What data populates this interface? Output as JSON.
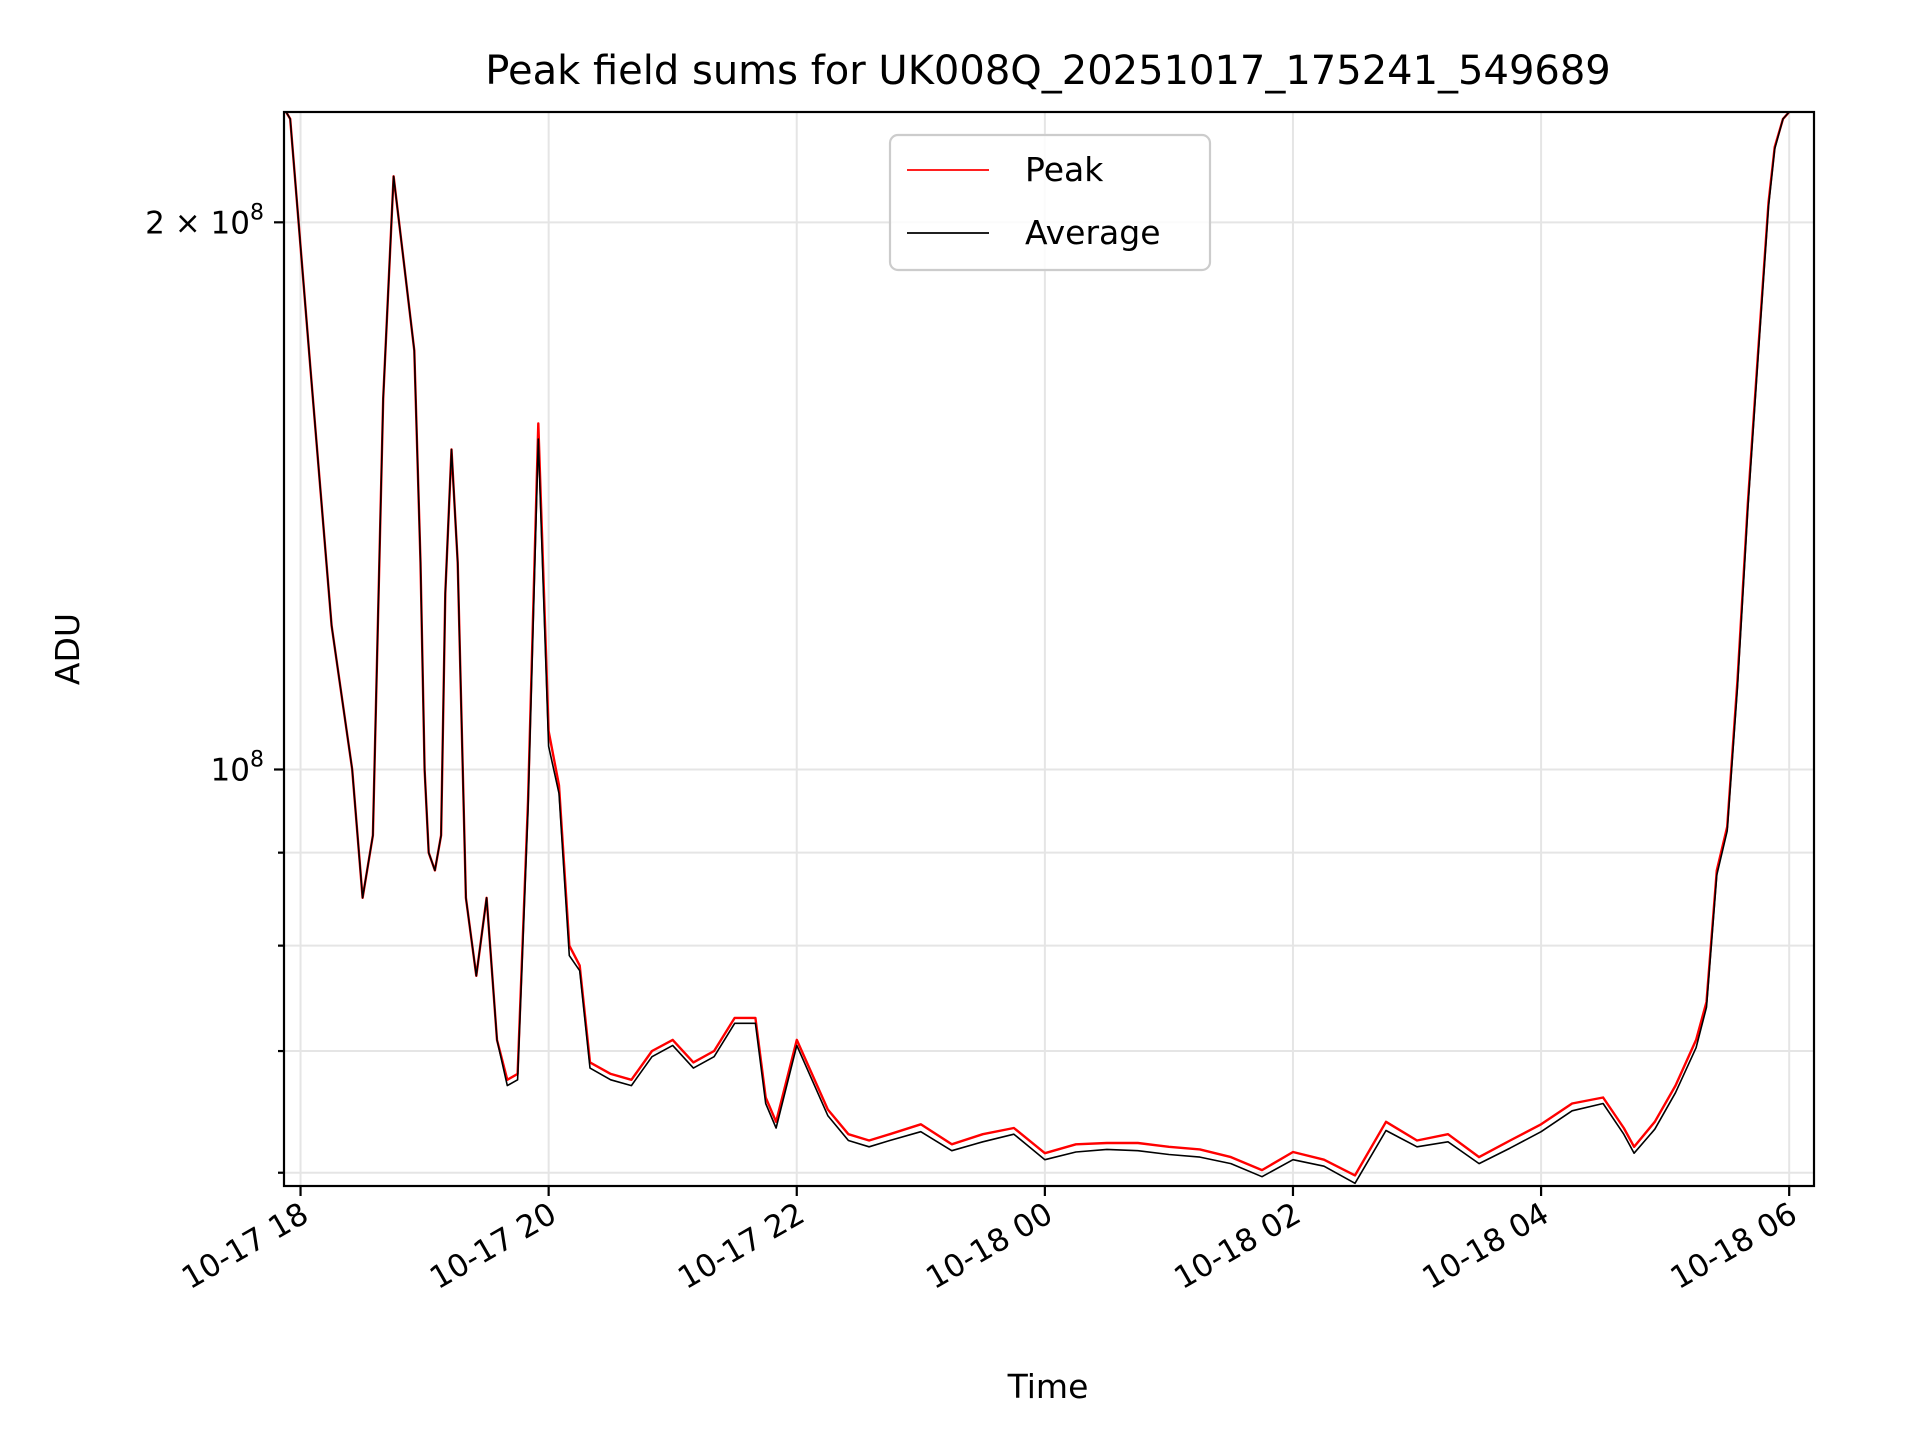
{
  "chart_data": {
    "type": "line",
    "title": "Peak field sums for UK008Q_20251017_175241_549689",
    "xlabel": "Time",
    "ylabel": "ADU",
    "yscale": "log",
    "xlim": [
      "2025-10-17 17:52",
      "2025-10-18 06:12"
    ],
    "ylim": [
      59000000,
      230000000
    ],
    "grid": true,
    "legend_position": "top-center",
    "x_ticks": [
      "10-17 18",
      "10-17 20",
      "10-17 22",
      "10-18 00",
      "10-18 02",
      "10-18 04",
      "10-18 06"
    ],
    "y_ticks": [
      {
        "value": 200000000,
        "base": "2 × 10",
        "exp": "8"
      },
      {
        "value": 100000000,
        "base": "10",
        "exp": "8"
      }
    ],
    "x": [
      "2025-10-17 17:53",
      "2025-10-17 17:55",
      "2025-10-17 18:05",
      "2025-10-17 18:15",
      "2025-10-17 18:25",
      "2025-10-17 18:30",
      "2025-10-17 18:35",
      "2025-10-17 18:40",
      "2025-10-17 18:45",
      "2025-10-17 18:50",
      "2025-10-17 18:55",
      "2025-10-17 18:58",
      "2025-10-17 19:00",
      "2025-10-17 19:02",
      "2025-10-17 19:05",
      "2025-10-17 19:08",
      "2025-10-17 19:10",
      "2025-10-17 19:13",
      "2025-10-17 19:16",
      "2025-10-17 19:20",
      "2025-10-17 19:25",
      "2025-10-17 19:30",
      "2025-10-17 19:35",
      "2025-10-17 19:40",
      "2025-10-17 19:45",
      "2025-10-17 19:50",
      "2025-10-17 19:55",
      "2025-10-17 20:00",
      "2025-10-17 20:05",
      "2025-10-17 20:10",
      "2025-10-17 20:15",
      "2025-10-17 20:20",
      "2025-10-17 20:30",
      "2025-10-17 20:40",
      "2025-10-17 20:50",
      "2025-10-17 21:00",
      "2025-10-17 21:10",
      "2025-10-17 21:20",
      "2025-10-17 21:30",
      "2025-10-17 21:40",
      "2025-10-17 21:45",
      "2025-10-17 21:50",
      "2025-10-17 22:00",
      "2025-10-17 22:15",
      "2025-10-17 22:25",
      "2025-10-17 22:35",
      "2025-10-17 22:45",
      "2025-10-17 23:00",
      "2025-10-17 23:15",
      "2025-10-17 23:30",
      "2025-10-17 23:45",
      "2025-10-18 00:00",
      "2025-10-18 00:15",
      "2025-10-18 00:30",
      "2025-10-18 00:45",
      "2025-10-18 01:00",
      "2025-10-18 01:15",
      "2025-10-18 01:30",
      "2025-10-18 01:45",
      "2025-10-18 02:00",
      "2025-10-18 02:15",
      "2025-10-18 02:30",
      "2025-10-18 02:45",
      "2025-10-18 03:00",
      "2025-10-18 03:15",
      "2025-10-18 03:30",
      "2025-10-18 03:45",
      "2025-10-18 04:00",
      "2025-10-18 04:15",
      "2025-10-18 04:30",
      "2025-10-18 04:40",
      "2025-10-18 04:45",
      "2025-10-18 04:55",
      "2025-10-18 05:05",
      "2025-10-18 05:15",
      "2025-10-18 05:20",
      "2025-10-18 05:25",
      "2025-10-18 05:30",
      "2025-10-18 05:35",
      "2025-10-18 05:40",
      "2025-10-18 05:45",
      "2025-10-18 05:50",
      "2025-10-18 05:53",
      "2025-10-18 05:57",
      "2025-10-18 06:00"
    ],
    "series": [
      {
        "name": "Peak",
        "color": "#ff0000",
        "values": [
          230000000,
          228000000,
          165000000,
          120000000,
          100000000,
          85000000,
          92000000,
          160000000,
          212000000,
          190000000,
          170000000,
          130000000,
          100000000,
          90000000,
          88000000,
          92000000,
          125000000,
          150000000,
          130000000,
          85000000,
          77000000,
          85000000,
          71000000,
          67500000,
          68000000,
          96000000,
          155000000,
          105000000,
          98000000,
          80000000,
          78000000,
          69000000,
          68000000,
          67500000,
          70000000,
          71000000,
          69000000,
          70000000,
          73000000,
          73000000,
          66000000,
          64000000,
          71000000,
          65000000,
          63000000,
          62500000,
          63000000,
          63800000,
          62200000,
          63000000,
          63500000,
          61500000,
          62200000,
          62300000,
          62300000,
          62000000,
          61800000,
          61200000,
          60200000,
          61600000,
          61000000,
          59800000,
          64000000,
          62500000,
          63000000,
          61200000,
          62500000,
          63800000,
          65500000,
          66000000,
          63500000,
          62000000,
          64000000,
          67000000,
          71000000,
          74500000,
          88000000,
          93000000,
          112000000,
          140000000,
          170000000,
          205000000,
          220000000,
          228000000,
          230000000
        ]
      },
      {
        "name": "Average",
        "color": "#000000",
        "values": [
          230000000,
          228000000,
          165000000,
          120000000,
          100000000,
          85000000,
          92000000,
          160000000,
          212000000,
          190000000,
          170000000,
          130000000,
          100000000,
          90000000,
          88000000,
          92000000,
          125000000,
          150000000,
          130000000,
          85000000,
          77000000,
          85000000,
          71000000,
          67000000,
          67500000,
          95000000,
          152000000,
          103000000,
          97000000,
          79000000,
          77500000,
          68500000,
          67500000,
          67000000,
          69500000,
          70500000,
          68500000,
          69500000,
          72500000,
          72500000,
          65500000,
          63500000,
          70500000,
          64500000,
          62500000,
          62000000,
          62500000,
          63200000,
          61700000,
          62400000,
          63000000,
          61000000,
          61600000,
          61800000,
          61700000,
          61400000,
          61200000,
          60700000,
          59700000,
          61000000,
          60500000,
          59200000,
          63300000,
          62000000,
          62400000,
          60700000,
          61900000,
          63200000,
          64900000,
          65500000,
          63000000,
          61500000,
          63400000,
          66400000,
          70300000,
          74000000,
          87500000,
          92500000,
          111000000,
          139000000,
          169000000,
          204000000,
          219500000,
          228000000,
          230000000
        ]
      }
    ]
  }
}
